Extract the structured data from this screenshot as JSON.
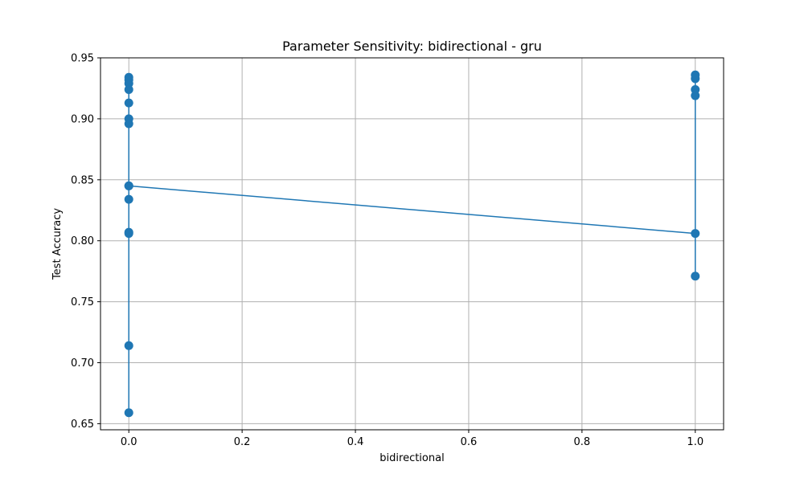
{
  "chart_data": {
    "type": "line",
    "title": "Parameter Sensitivity: bidirectional - gru",
    "xlabel": "bidirectional",
    "ylabel": "Test Accuracy",
    "xlim": [
      -0.05,
      1.05
    ],
    "ylim": [
      0.645,
      0.95
    ],
    "grid": true,
    "xticks": [
      0.0,
      0.2,
      0.4,
      0.6,
      0.8,
      1.0
    ],
    "xtick_labels": [
      "0.0",
      "0.2",
      "0.4",
      "0.6",
      "0.8",
      "1.0"
    ],
    "yticks": [
      0.65,
      0.7,
      0.75,
      0.8,
      0.85,
      0.9,
      0.95
    ],
    "ytick_labels": [
      "0.65",
      "0.70",
      "0.75",
      "0.80",
      "0.85",
      "0.90",
      "0.95"
    ],
    "colors": {
      "series": "#1f77b4",
      "grid": "#b0b0b0",
      "axes": "#000000"
    },
    "series": [
      {
        "x": [
          0,
          0,
          0,
          0,
          0,
          0,
          0,
          0,
          0,
          0,
          0,
          0,
          0,
          0,
          1,
          1,
          1,
          1,
          1,
          1
        ],
        "y": [
          0.934,
          0.932,
          0.929,
          0.924,
          0.913,
          0.9,
          0.896,
          0.845,
          0.834,
          0.807,
          0.806,
          0.714,
          0.659,
          0.845,
          0.806,
          0.771,
          0.919,
          0.924,
          0.933,
          0.936
        ]
      }
    ]
  }
}
